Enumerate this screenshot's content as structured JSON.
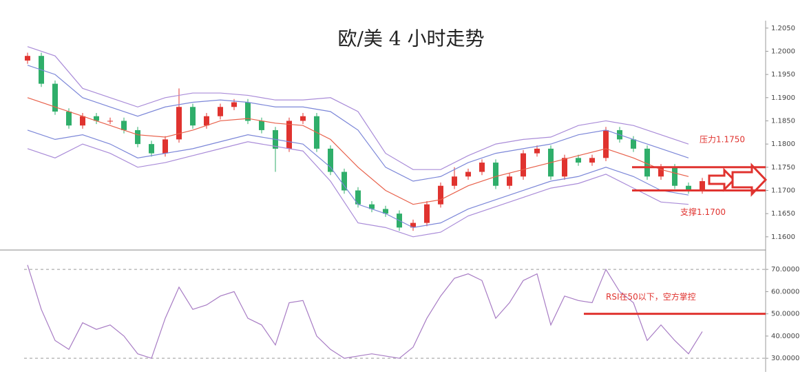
{
  "chart_data": [
    {
      "type": "candlestick",
      "title": "欧/美 4 小时走势",
      "open": [
        1.198,
        1.199,
        1.193,
        1.187,
        1.184,
        1.186,
        1.185,
        1.185,
        1.183,
        1.18,
        1.178,
        1.181,
        1.188,
        1.184,
        1.186,
        1.188,
        1.189,
        1.185,
        1.183,
        1.179,
        1.185,
        1.186,
        1.179,
        1.174,
        1.17,
        1.167,
        1.166,
        1.165,
        1.162,
        1.163,
        1.167,
        1.171,
        1.173,
        1.174,
        1.176,
        1.171,
        1.173,
        1.178,
        1.179,
        1.173,
        1.177,
        1.176,
        1.177,
        1.183,
        1.181,
        1.179,
        1.173,
        1.175,
        1.171,
        1.17
      ],
      "high": [
        1.1997,
        1.1997,
        1.1937,
        1.1877,
        1.1867,
        1.1867,
        1.1857,
        1.1857,
        1.1837,
        1.1807,
        1.1817,
        1.192,
        1.1887,
        1.1867,
        1.1887,
        1.1897,
        1.1897,
        1.1857,
        1.1837,
        1.1857,
        1.1867,
        1.1867,
        1.1797,
        1.1747,
        1.1707,
        1.1677,
        1.1667,
        1.1657,
        1.1637,
        1.1677,
        1.1717,
        1.175,
        1.1747,
        1.1767,
        1.1767,
        1.1737,
        1.1787,
        1.1797,
        1.1797,
        1.1777,
        1.1777,
        1.1777,
        1.1837,
        1.1837,
        1.1817,
        1.1797,
        1.1757,
        1.1757,
        1.1717,
        1.1727
      ],
      "low": [
        1.1973,
        1.1923,
        1.1863,
        1.1833,
        1.1833,
        1.1843,
        1.1843,
        1.1823,
        1.1793,
        1.1773,
        1.1773,
        1.1803,
        1.1833,
        1.1833,
        1.1853,
        1.1873,
        1.1843,
        1.1823,
        1.174,
        1.1783,
        1.1843,
        1.1783,
        1.1733,
        1.1693,
        1.1663,
        1.1653,
        1.1643,
        1.1613,
        1.1613,
        1.1623,
        1.1663,
        1.1703,
        1.1723,
        1.1733,
        1.1703,
        1.1703,
        1.1723,
        1.1773,
        1.1723,
        1.1723,
        1.1753,
        1.1753,
        1.1763,
        1.1803,
        1.1783,
        1.1723,
        1.1723,
        1.1703,
        1.1693,
        1.1693
      ],
      "close": [
        1.199,
        1.193,
        1.187,
        1.184,
        1.186,
        1.185,
        1.185,
        1.183,
        1.18,
        1.178,
        1.181,
        1.188,
        1.184,
        1.186,
        1.188,
        1.189,
        1.185,
        1.183,
        1.179,
        1.185,
        1.186,
        1.179,
        1.174,
        1.17,
        1.167,
        1.166,
        1.165,
        1.162,
        1.163,
        1.167,
        1.171,
        1.173,
        1.174,
        1.176,
        1.171,
        1.173,
        1.178,
        1.179,
        1.173,
        1.177,
        1.176,
        1.177,
        1.183,
        1.181,
        1.179,
        1.173,
        1.175,
        1.171,
        1.17,
        1.172
      ],
      "up_color": "#e0332f",
      "down_color": "#2fae6a",
      "series": [
        {
          "color": "#e8604a",
          "x": [
            0,
            2,
            4,
            6,
            8,
            10,
            12,
            14,
            16,
            18,
            20,
            22,
            24,
            26,
            28,
            30,
            32,
            34,
            36,
            38,
            40,
            42,
            44,
            46,
            48
          ],
          "values": [
            1.19,
            1.188,
            1.186,
            1.184,
            1.182,
            1.1815,
            1.183,
            1.185,
            1.1855,
            1.1845,
            1.184,
            1.181,
            1.175,
            1.17,
            1.167,
            1.168,
            1.171,
            1.173,
            1.1745,
            1.176,
            1.1775,
            1.179,
            1.177,
            1.1745,
            1.173
          ]
        },
        {
          "color": "#7b86d8",
          "x": [
            0,
            2,
            4,
            6,
            8,
            10,
            12,
            14,
            16,
            18,
            20,
            22,
            24,
            26,
            28,
            30,
            32,
            34,
            36,
            38,
            40,
            42,
            44,
            46,
            48
          ],
          "values": [
            1.197,
            1.195,
            1.19,
            1.188,
            1.186,
            1.188,
            1.189,
            1.1895,
            1.189,
            1.188,
            1.188,
            1.187,
            1.183,
            1.175,
            1.172,
            1.173,
            1.176,
            1.178,
            1.179,
            1.18,
            1.182,
            1.183,
            1.181,
            1.179,
            1.177
          ]
        },
        {
          "color": "#7b86d8",
          "x": [
            0,
            2,
            4,
            6,
            8,
            10,
            12,
            14,
            16,
            18,
            20,
            22,
            24,
            26,
            28,
            30,
            32,
            34,
            36,
            38,
            40,
            42,
            44,
            46,
            48
          ],
          "values": [
            1.183,
            1.181,
            1.182,
            1.18,
            1.177,
            1.178,
            1.179,
            1.1805,
            1.182,
            1.181,
            1.18,
            1.175,
            1.167,
            1.165,
            1.162,
            1.163,
            1.166,
            1.168,
            1.17,
            1.172,
            1.173,
            1.175,
            1.173,
            1.17,
            1.169
          ]
        },
        {
          "color": "#a98bd8",
          "x": [
            0,
            2,
            4,
            6,
            8,
            10,
            12,
            14,
            16,
            18,
            20,
            22,
            24,
            26,
            28,
            30,
            32,
            34,
            36,
            38,
            40,
            42,
            44,
            46,
            48
          ],
          "values": [
            1.201,
            1.199,
            1.192,
            1.19,
            1.188,
            1.19,
            1.191,
            1.191,
            1.1905,
            1.1895,
            1.1895,
            1.19,
            1.187,
            1.178,
            1.1745,
            1.1745,
            1.1775,
            1.18,
            1.181,
            1.1815,
            1.184,
            1.185,
            1.184,
            1.182,
            1.18
          ]
        },
        {
          "color": "#a98bd8",
          "x": [
            0,
            2,
            4,
            6,
            8,
            10,
            12,
            14,
            16,
            18,
            20,
            22,
            24,
            26,
            28,
            30,
            32,
            34,
            36,
            38,
            40,
            42,
            44,
            46,
            48
          ],
          "values": [
            1.179,
            1.177,
            1.18,
            1.178,
            1.175,
            1.176,
            1.1775,
            1.179,
            1.1805,
            1.1795,
            1.1785,
            1.172,
            1.163,
            1.162,
            1.16,
            1.161,
            1.1645,
            1.1665,
            1.1685,
            1.1705,
            1.1715,
            1.1735,
            1.1705,
            1.1675,
            1.167
          ]
        }
      ],
      "levels": [
        {
          "label": "压力1.1750",
          "value": 1.175
        },
        {
          "label": "支撑1.1700",
          "value": 1.17
        }
      ],
      "level_color": "#e0332f",
      "ylim": [
        1.1573,
        1.2066
      ],
      "yticks": [
        {
          "value": 1.205,
          "label": "1.2050"
        },
        {
          "value": 1.2,
          "label": "1.2000"
        },
        {
          "value": 1.195,
          "label": "1.1950"
        },
        {
          "value": 1.19,
          "label": "1.1900"
        },
        {
          "value": 1.185,
          "label": "1.1850"
        },
        {
          "value": 1.18,
          "label": "1.1800"
        },
        {
          "value": 1.175,
          "label": "1.1750"
        },
        {
          "value": 1.17,
          "label": "1.1700"
        },
        {
          "value": 1.165,
          "label": "1.1650"
        },
        {
          "value": 1.16,
          "label": "1.1600"
        }
      ]
    },
    {
      "type": "line",
      "series": [
        {
          "color": "#a77bc4",
          "values": [
            72,
            52,
            38,
            34,
            46,
            43,
            45,
            40,
            32,
            30,
            48,
            62,
            52,
            54,
            58,
            60,
            48,
            45,
            36,
            55,
            56,
            40,
            34,
            30,
            31,
            32,
            31,
            30,
            35,
            48,
            58,
            66,
            68,
            65,
            48,
            55,
            65,
            68,
            45,
            58,
            56,
            55,
            70,
            60,
            55,
            38,
            45,
            38,
            32,
            42
          ]
        }
      ],
      "levels": [
        {
          "label": "RSI在50以下，空方掌控",
          "value": 50
        }
      ],
      "level_color": "#e0332f",
      "ylim": [
        25.4,
        78.1
      ],
      "yticks": [
        {
          "value": 70,
          "label": "70.0000"
        },
        {
          "value": 60,
          "label": "60.0000"
        },
        {
          "value": 50,
          "label": "50.0000"
        },
        {
          "value": 40,
          "label": "40.0000"
        },
        {
          "value": 30,
          "label": "30.0000"
        }
      ],
      "dashed_ticks": [
        70,
        30
      ]
    }
  ]
}
